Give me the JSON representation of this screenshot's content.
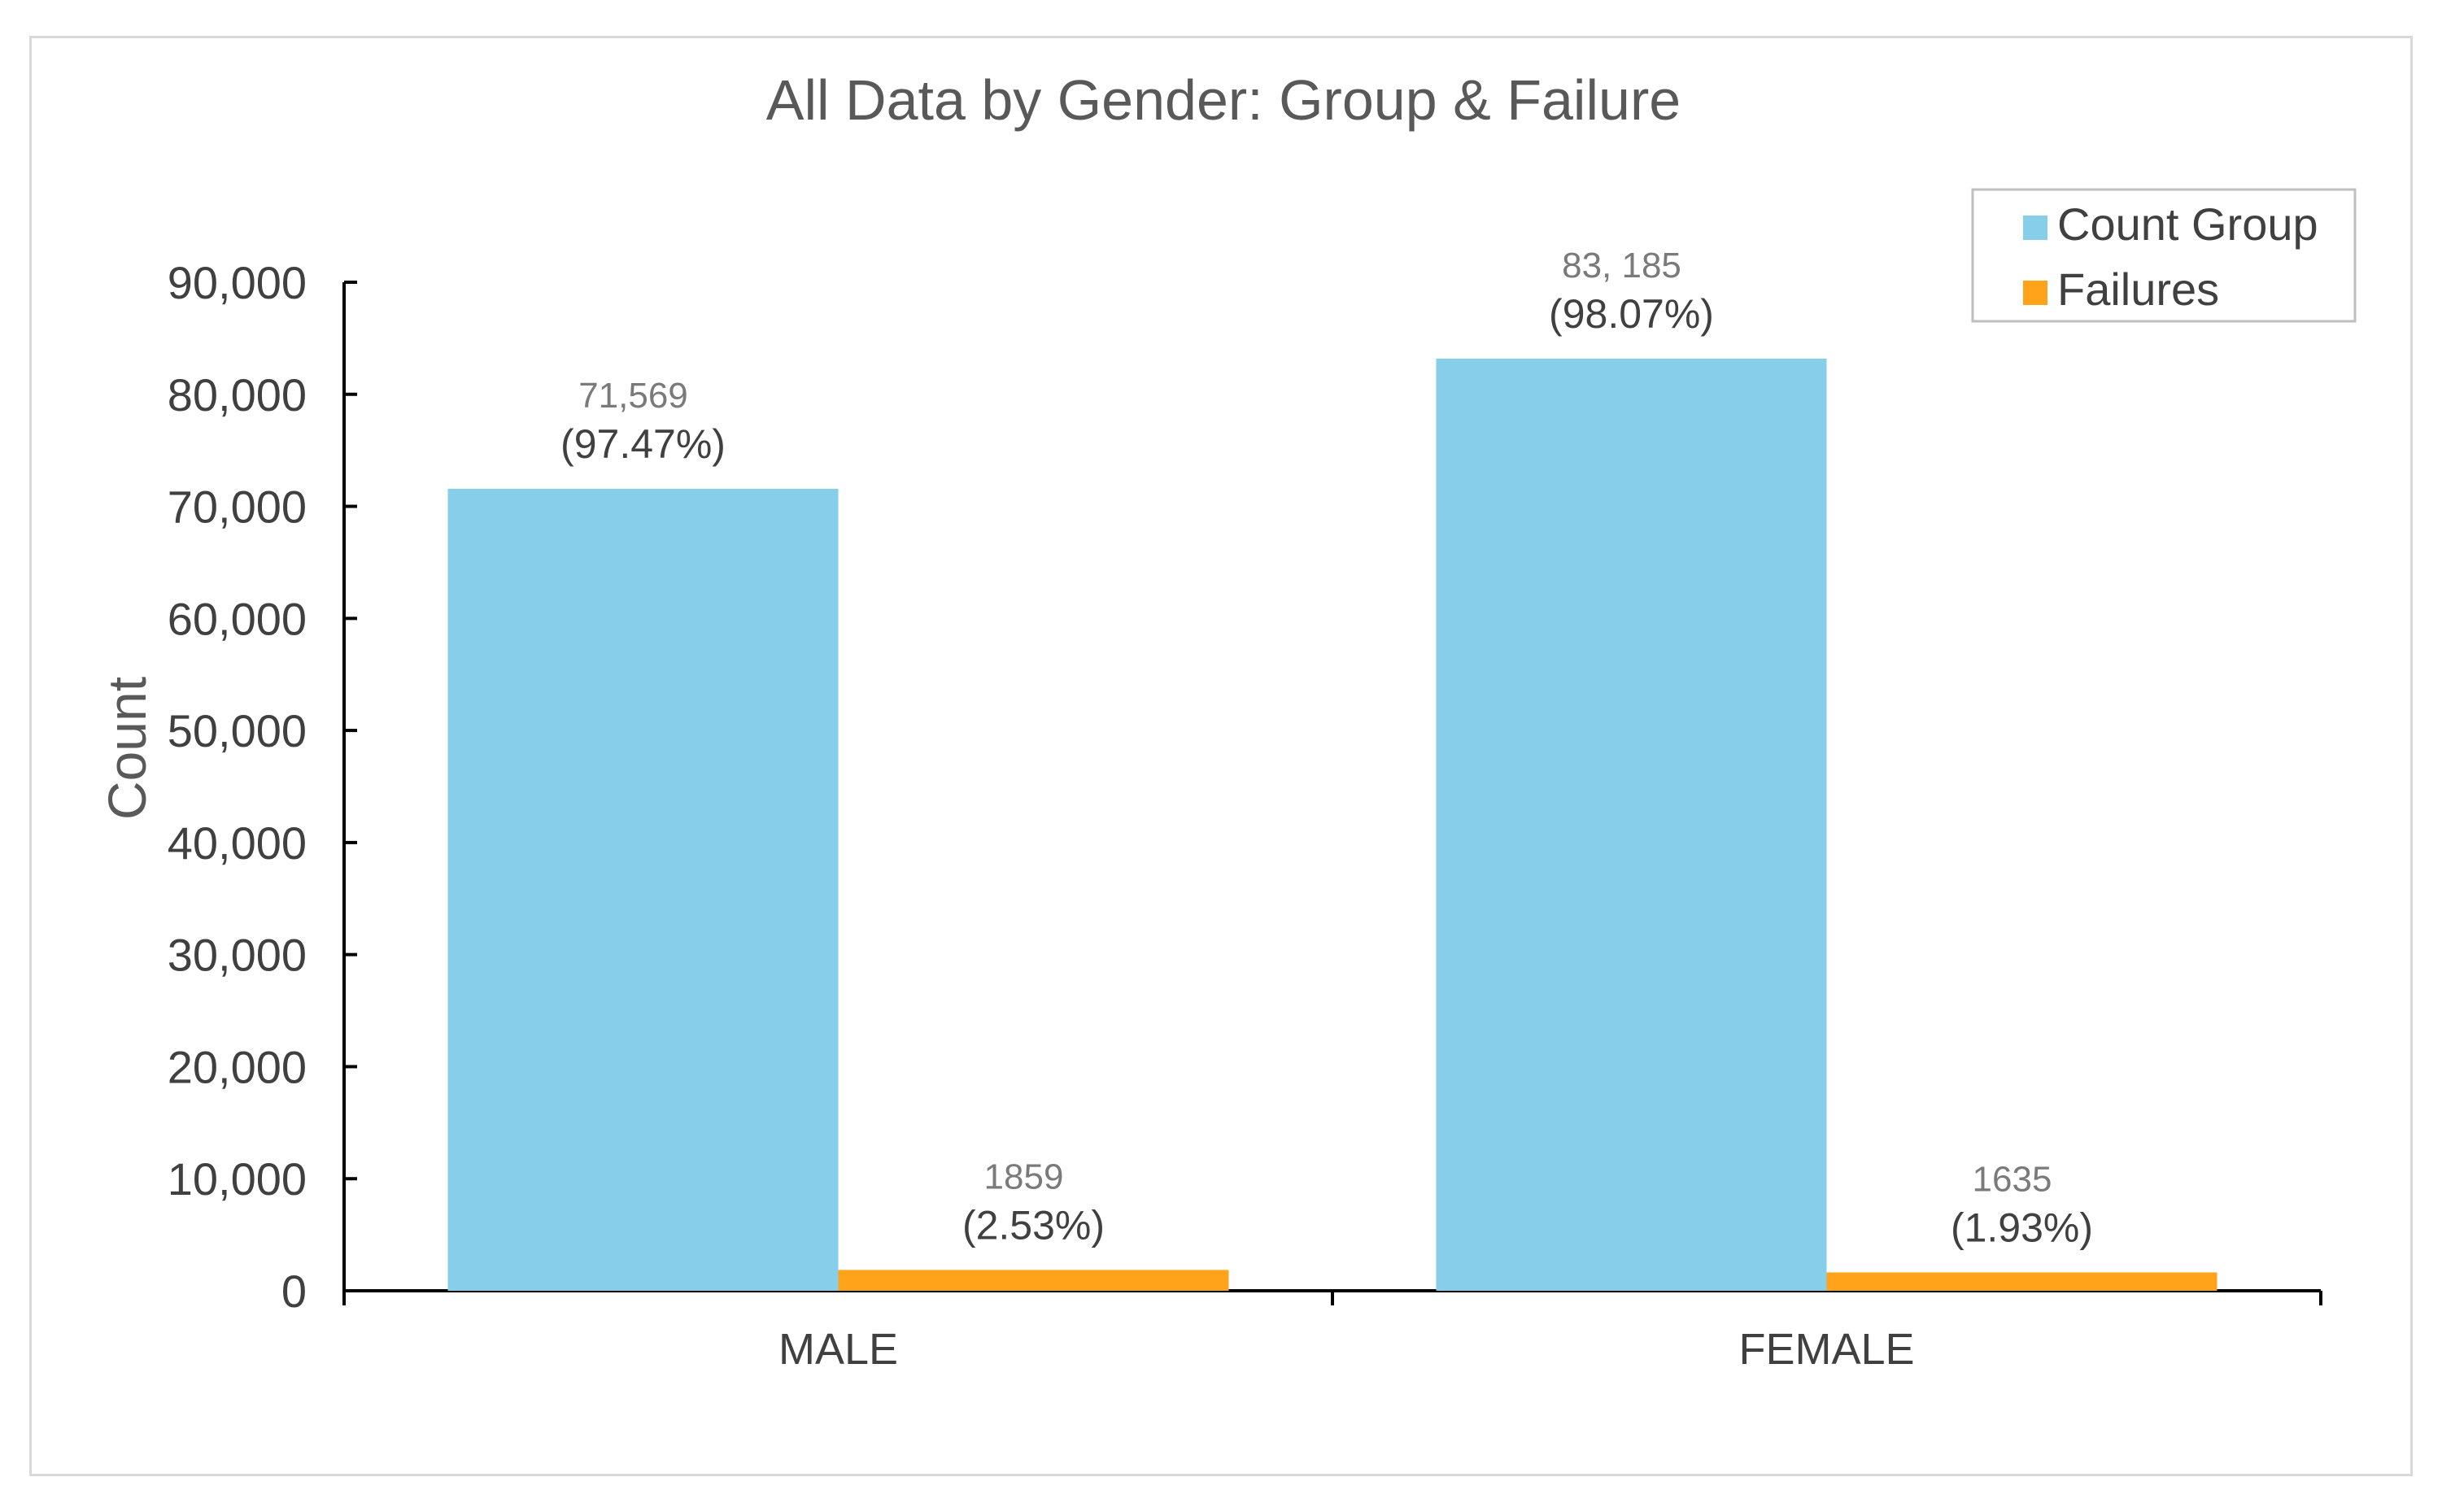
{
  "chart_data": {
    "type": "bar",
    "title": "All Data by Gender: Group & Failure",
    "xlabel": "",
    "ylabel": "Count",
    "categories": [
      "MALE",
      "FEMALE"
    ],
    "series": [
      {
        "name": "Count Group",
        "color": "#87ceeb",
        "values": [
          71569,
          83185
        ],
        "value_labels": [
          "71,569",
          "83, 185"
        ],
        "percent_labels": [
          "(97.47%)",
          "(98.07%)"
        ]
      },
      {
        "name": "Failures",
        "color": "#ffa31a",
        "values": [
          1859,
          1635
        ],
        "value_labels": [
          "1859",
          "1635"
        ],
        "percent_labels": [
          "(2.53%)",
          "(1.93%)"
        ]
      }
    ],
    "ylim": [
      0,
      90000
    ],
    "yticks": [
      0,
      10000,
      20000,
      30000,
      40000,
      50000,
      60000,
      70000,
      80000,
      90000
    ],
    "ytick_labels": [
      "0",
      "10,000",
      "20,000",
      "30,000",
      "40,000",
      "50,000",
      "60,000",
      "70,000",
      "80,000",
      "90,000"
    ],
    "grid": false,
    "legend": "top-right"
  }
}
